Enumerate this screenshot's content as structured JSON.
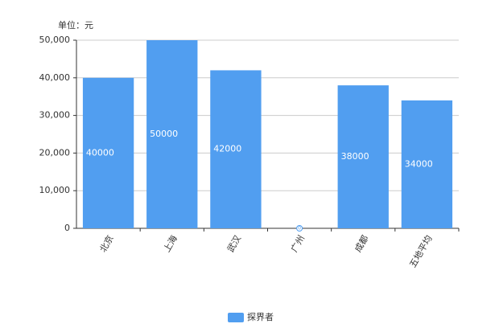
{
  "chart_data": {
    "type": "bar",
    "unit_label": "单位：元",
    "categories": [
      "北京",
      "上海",
      "武汉",
      "广州",
      "成都",
      "五地平均"
    ],
    "series": [
      {
        "name": "探界者",
        "color": "#519ef0",
        "values": [
          40000,
          50000,
          42000,
          0,
          38000,
          34000
        ]
      }
    ],
    "ylim": [
      0,
      50000
    ],
    "yticks": [
      0,
      {
        "value": 10000,
        "label": "10,000"
      },
      {
        "value": 20000,
        "label": "20,000"
      },
      {
        "value": 30000,
        "label": "30,000"
      },
      {
        "value": 40000,
        "label": "40,000"
      },
      {
        "value": 50000,
        "label": "50,000"
      }
    ],
    "grid": true,
    "legend": "bottom"
  }
}
